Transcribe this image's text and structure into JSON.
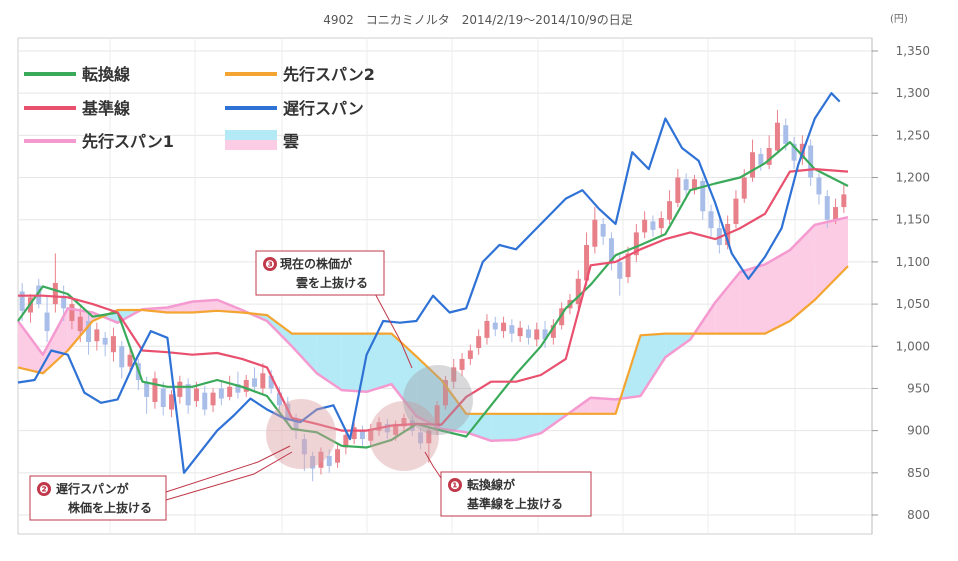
{
  "chart_data": {
    "type": "line",
    "title": "4902　コニカミノルタ　2014/2/19〜2014/10/9の日足",
    "unit": "(円)",
    "ylim": [
      790,
      1365
    ],
    "y_ticks": [
      "800",
      "850",
      "900",
      "950",
      "1,000",
      "1,050",
      "1,100",
      "1,150",
      "1,200",
      "1,250",
      "1,300",
      "1,350"
    ],
    "y_tick_values": [
      800,
      850,
      900,
      950,
      1000,
      1050,
      1100,
      1150,
      1200,
      1250,
      1300,
      1350
    ],
    "grid": true,
    "legend_position": "top-left",
    "legend": {
      "tenkan": "転換線",
      "kijun": "基準線",
      "senkou1": "先行スパン1",
      "senkou2": "先行スパン2",
      "chikou": "遅行スパン",
      "kumo": "雲"
    },
    "colors": {
      "tenkan": "#3aaa5a",
      "kijun": "#e8506e",
      "senkou1": "#f49ad0",
      "senkou2": "#f4a430",
      "chikou": "#2f72d6",
      "kumo_bull": "#b3eaf5",
      "kumo_bear": "#fccbe4",
      "candle_up": "#e8808a",
      "candle_down": "#a9bde9",
      "callout_border": "#c0384a",
      "highlight": "#dca0a4"
    },
    "x_index_range": [
      0,
      100
    ],
    "series": [
      {
        "key": "senkou1",
        "x": [
          0,
          3,
          6,
          9,
          12,
          15,
          18,
          21,
          24,
          27,
          30,
          33,
          36,
          39,
          42,
          45,
          48,
          51,
          54,
          57,
          60,
          63,
          66,
          69,
          72,
          75,
          78,
          81,
          84,
          87,
          90,
          93,
          96,
          100
        ],
        "values": [
          1030,
          990,
          1045,
          1040,
          1028,
          1044,
          1046,
          1053,
          1055,
          1043,
          1030,
          1000,
          968,
          948,
          946,
          955,
          917,
          902,
          898,
          888,
          889,
          897,
          918,
          939,
          937,
          941,
          987,
          1008,
          1052,
          1088,
          1097,
          1114,
          1144,
          1153
        ]
      },
      {
        "key": "senkou2",
        "x": [
          0,
          3,
          6,
          9,
          12,
          15,
          18,
          21,
          24,
          27,
          30,
          33,
          36,
          39,
          42,
          45,
          48,
          51,
          54,
          57,
          60,
          63,
          66,
          69,
          72,
          75,
          78,
          81,
          84,
          87,
          90,
          93,
          96,
          100
        ],
        "values": [
          975,
          968,
          995,
          1030,
          1043,
          1043,
          1040,
          1040,
          1042,
          1040,
          1037,
          1015,
          1015,
          1015,
          1015,
          1015,
          988,
          960,
          920,
          920,
          920,
          920,
          920,
          920,
          920,
          1013,
          1015,
          1015,
          1015,
          1015,
          1015,
          1030,
          1055,
          1095
        ]
      },
      {
        "key": "tenkan",
        "x": [
          0,
          3,
          6,
          9,
          12,
          15,
          18,
          21,
          24,
          27,
          30,
          33,
          36,
          39,
          42,
          45,
          48,
          51,
          54,
          57,
          60,
          63,
          66,
          69,
          72,
          75,
          78,
          81,
          84,
          87,
          90,
          93,
          96,
          100
        ],
        "values": [
          1030,
          1071,
          1062,
          1035,
          1040,
          958,
          952,
          952,
          960,
          952,
          941,
          902,
          898,
          882,
          880,
          889,
          908,
          900,
          893,
          930,
          967,
          1000,
          1045,
          1073,
          1108,
          1120,
          1133,
          1185,
          1193,
          1200,
          1217,
          1242,
          1210,
          1190
        ]
      },
      {
        "key": "kijun",
        "x": [
          0,
          3,
          6,
          9,
          12,
          15,
          18,
          21,
          24,
          27,
          30,
          33,
          36,
          39,
          42,
          45,
          48,
          51,
          54,
          57,
          60,
          63,
          66,
          69,
          72,
          75,
          78,
          81,
          84,
          87,
          90,
          93,
          96,
          100
        ],
        "values": [
          1060,
          1060,
          1058,
          1050,
          1040,
          995,
          993,
          990,
          992,
          985,
          975,
          915,
          908,
          900,
          900,
          906,
          908,
          907,
          940,
          958,
          958,
          966,
          985,
          1096,
          1100,
          1115,
          1127,
          1135,
          1127,
          1140,
          1157,
          1207,
          1210,
          1207
        ]
      },
      {
        "key": "chikou",
        "x": [
          0,
          2,
          4,
          6,
          8,
          10,
          12,
          14,
          16,
          18,
          20,
          22,
          24,
          26,
          28,
          30,
          32,
          34,
          36,
          38,
          40,
          42,
          44,
          46,
          48,
          50,
          52,
          54,
          56,
          58,
          60,
          62,
          64,
          66,
          68,
          70,
          72,
          74,
          76,
          78,
          80,
          82,
          84,
          86,
          88,
          90,
          92,
          94,
          96,
          98,
          99
        ],
        "values": [
          957,
          960,
          995,
          990,
          945,
          933,
          937,
          980,
          1018,
          1010,
          850,
          875,
          900,
          918,
          938,
          925,
          915,
          910,
          925,
          930,
          890,
          990,
          1030,
          1028,
          1030,
          1060,
          1040,
          1045,
          1100,
          1120,
          1115,
          1135,
          1155,
          1175,
          1185,
          1163,
          1145,
          1230,
          1210,
          1270,
          1235,
          1220,
          1170,
          1110,
          1080,
          1106,
          1140,
          1215,
          1270,
          1300,
          1290
        ]
      }
    ],
    "candles": [
      {
        "x": 0.5,
        "o": 1065,
        "c": 1042,
        "h": 1075,
        "l": 1030
      },
      {
        "x": 1.5,
        "o": 1040,
        "c": 1058,
        "h": 1062,
        "l": 1028
      },
      {
        "x": 2.5,
        "o": 1072,
        "c": 1050,
        "h": 1080,
        "l": 1045
      },
      {
        "x": 3.5,
        "o": 1040,
        "c": 1018,
        "h": 1060,
        "l": 1005
      },
      {
        "x": 4.5,
        "o": 1050,
        "c": 1075,
        "h": 1110,
        "l": 1040
      },
      {
        "x": 5.5,
        "o": 1060,
        "c": 1045,
        "h": 1072,
        "l": 1030
      },
      {
        "x": 6.5,
        "o": 1030,
        "c": 1050,
        "h": 1058,
        "l": 1020
      },
      {
        "x": 7.5,
        "o": 1018,
        "c": 1035,
        "h": 1046,
        "l": 1005
      },
      {
        "x": 8.5,
        "o": 1030,
        "c": 1005,
        "h": 1040,
        "l": 990
      },
      {
        "x": 9.5,
        "o": 1006,
        "c": 1020,
        "h": 1028,
        "l": 995
      },
      {
        "x": 10.5,
        "o": 1010,
        "c": 1002,
        "h": 1017,
        "l": 988
      },
      {
        "x": 11.5,
        "o": 993,
        "c": 1012,
        "h": 1022,
        "l": 982
      },
      {
        "x": 12.5,
        "o": 1000,
        "c": 975,
        "h": 1006,
        "l": 962
      },
      {
        "x": 13.5,
        "o": 976,
        "c": 990,
        "h": 998,
        "l": 968
      },
      {
        "x": 14.5,
        "o": 980,
        "c": 960,
        "h": 985,
        "l": 948
      },
      {
        "x": 15.5,
        "o": 958,
        "c": 940,
        "h": 964,
        "l": 920
      },
      {
        "x": 16.5,
        "o": 934,
        "c": 962,
        "h": 970,
        "l": 926
      },
      {
        "x": 17.5,
        "o": 950,
        "c": 928,
        "h": 958,
        "l": 918
      },
      {
        "x": 18.5,
        "o": 925,
        "c": 943,
        "h": 948,
        "l": 916
      },
      {
        "x": 19.5,
        "o": 940,
        "c": 958,
        "h": 965,
        "l": 932
      },
      {
        "x": 20.5,
        "o": 955,
        "c": 930,
        "h": 962,
        "l": 920
      },
      {
        "x": 21.5,
        "o": 935,
        "c": 950,
        "h": 958,
        "l": 928
      },
      {
        "x": 22.5,
        "o": 945,
        "c": 925,
        "h": 953,
        "l": 918
      },
      {
        "x": 23.5,
        "o": 930,
        "c": 945,
        "h": 950,
        "l": 922
      },
      {
        "x": 24.5,
        "o": 950,
        "c": 938,
        "h": 958,
        "l": 930
      },
      {
        "x": 25.5,
        "o": 940,
        "c": 952,
        "h": 965,
        "l": 936
      },
      {
        "x": 26.5,
        "o": 955,
        "c": 945,
        "h": 970,
        "l": 938
      },
      {
        "x": 27.5,
        "o": 946,
        "c": 960,
        "h": 966,
        "l": 940
      },
      {
        "x": 28.5,
        "o": 962,
        "c": 952,
        "h": 975,
        "l": 945
      },
      {
        "x": 29.5,
        "o": 950,
        "c": 968,
        "h": 980,
        "l": 944
      },
      {
        "x": 30.5,
        "o": 965,
        "c": 950,
        "h": 972,
        "l": 944
      },
      {
        "x": 31.5,
        "o": 945,
        "c": 930,
        "h": 952,
        "l": 922
      },
      {
        "x": 32.5,
        "o": 932,
        "c": 915,
        "h": 940,
        "l": 908
      },
      {
        "x": 33.5,
        "o": 915,
        "c": 900,
        "h": 920,
        "l": 890
      },
      {
        "x": 34.5,
        "o": 890,
        "c": 872,
        "h": 896,
        "l": 852
      },
      {
        "x": 35.5,
        "o": 870,
        "c": 855,
        "h": 875,
        "l": 840
      },
      {
        "x": 36.5,
        "o": 856,
        "c": 875,
        "h": 880,
        "l": 848
      },
      {
        "x": 37.5,
        "o": 870,
        "c": 858,
        "h": 878,
        "l": 850
      },
      {
        "x": 38.5,
        "o": 862,
        "c": 878,
        "h": 884,
        "l": 856
      },
      {
        "x": 39.5,
        "o": 880,
        "c": 895,
        "h": 900,
        "l": 872
      },
      {
        "x": 40.5,
        "o": 890,
        "c": 904,
        "h": 910,
        "l": 884
      },
      {
        "x": 41.5,
        "o": 900,
        "c": 890,
        "h": 906,
        "l": 882
      },
      {
        "x": 42.5,
        "o": 888,
        "c": 902,
        "h": 908,
        "l": 880
      },
      {
        "x": 43.5,
        "o": 900,
        "c": 910,
        "h": 916,
        "l": 894
      },
      {
        "x": 44.5,
        "o": 908,
        "c": 898,
        "h": 914,
        "l": 890
      },
      {
        "x": 45.5,
        "o": 895,
        "c": 908,
        "h": 912,
        "l": 888
      },
      {
        "x": 46.5,
        "o": 905,
        "c": 915,
        "h": 920,
        "l": 898
      },
      {
        "x": 47.5,
        "o": 912,
        "c": 900,
        "h": 918,
        "l": 894
      },
      {
        "x": 48.5,
        "o": 898,
        "c": 885,
        "h": 903,
        "l": 878
      },
      {
        "x": 49.5,
        "o": 885,
        "c": 900,
        "h": 905,
        "l": 862
      },
      {
        "x": 50.5,
        "o": 900,
        "c": 930,
        "h": 935,
        "l": 895
      },
      {
        "x": 51.5,
        "o": 930,
        "c": 960,
        "h": 965,
        "l": 925
      },
      {
        "x": 52.5,
        "o": 958,
        "c": 975,
        "h": 985,
        "l": 950
      },
      {
        "x": 53.5,
        "o": 972,
        "c": 985,
        "h": 992,
        "l": 965
      },
      {
        "x": 54.5,
        "o": 985,
        "c": 995,
        "h": 1002,
        "l": 978
      },
      {
        "x": 55.5,
        "o": 998,
        "c": 1012,
        "h": 1020,
        "l": 990
      },
      {
        "x": 56.5,
        "o": 1010,
        "c": 1030,
        "h": 1038,
        "l": 1002
      },
      {
        "x": 57.5,
        "o": 1028,
        "c": 1020,
        "h": 1035,
        "l": 1012
      },
      {
        "x": 58.5,
        "o": 1018,
        "c": 1028,
        "h": 1035,
        "l": 1010
      },
      {
        "x": 59.5,
        "o": 1025,
        "c": 1015,
        "h": 1032,
        "l": 1005
      },
      {
        "x": 60.5,
        "o": 1012,
        "c": 1022,
        "h": 1030,
        "l": 1005
      },
      {
        "x": 61.5,
        "o": 1020,
        "c": 1010,
        "h": 1025,
        "l": 1002
      },
      {
        "x": 62.5,
        "o": 1008,
        "c": 1020,
        "h": 1028,
        "l": 1000
      },
      {
        "x": 63.5,
        "o": 1020,
        "c": 1008,
        "h": 1030,
        "l": 998
      },
      {
        "x": 64.5,
        "o": 1010,
        "c": 1025,
        "h": 1032,
        "l": 1002
      },
      {
        "x": 65.5,
        "o": 1025,
        "c": 1045,
        "h": 1052,
        "l": 1020
      },
      {
        "x": 66.5,
        "o": 1045,
        "c": 1055,
        "h": 1062,
        "l": 1038
      },
      {
        "x": 67.5,
        "o": 1050,
        "c": 1080,
        "h": 1090,
        "l": 1045
      },
      {
        "x": 68.5,
        "o": 1078,
        "c": 1120,
        "h": 1135,
        "l": 1072
      },
      {
        "x": 69.5,
        "o": 1118,
        "c": 1150,
        "h": 1165,
        "l": 1110
      },
      {
        "x": 70.5,
        "o": 1145,
        "c": 1130,
        "h": 1152,
        "l": 1120
      },
      {
        "x": 71.5,
        "o": 1128,
        "c": 1100,
        "h": 1135,
        "l": 1090
      },
      {
        "x": 72.5,
        "o": 1100,
        "c": 1080,
        "h": 1108,
        "l": 1060
      },
      {
        "x": 73.5,
        "o": 1082,
        "c": 1110,
        "h": 1118,
        "l": 1075
      },
      {
        "x": 74.5,
        "o": 1108,
        "c": 1135,
        "h": 1145,
        "l": 1100
      },
      {
        "x": 75.5,
        "o": 1135,
        "c": 1150,
        "h": 1160,
        "l": 1128
      },
      {
        "x": 76.5,
        "o": 1148,
        "c": 1138,
        "h": 1155,
        "l": 1130
      },
      {
        "x": 77.5,
        "o": 1140,
        "c": 1152,
        "h": 1160,
        "l": 1132
      },
      {
        "x": 78.5,
        "o": 1150,
        "c": 1172,
        "h": 1185,
        "l": 1145
      },
      {
        "x": 79.5,
        "o": 1170,
        "c": 1200,
        "h": 1210,
        "l": 1165
      },
      {
        "x": 80.5,
        "o": 1198,
        "c": 1185,
        "h": 1205,
        "l": 1178
      },
      {
        "x": 81.5,
        "o": 1185,
        "c": 1198,
        "h": 1203,
        "l": 1180
      },
      {
        "x": 82.5,
        "o": 1196,
        "c": 1160,
        "h": 1200,
        "l": 1150
      },
      {
        "x": 83.5,
        "o": 1160,
        "c": 1140,
        "h": 1168,
        "l": 1130
      },
      {
        "x": 84.5,
        "o": 1140,
        "c": 1120,
        "h": 1150,
        "l": 1110
      },
      {
        "x": 85.5,
        "o": 1120,
        "c": 1145,
        "h": 1155,
        "l": 1115
      },
      {
        "x": 86.5,
        "o": 1145,
        "c": 1175,
        "h": 1185,
        "l": 1140
      },
      {
        "x": 87.5,
        "o": 1175,
        "c": 1200,
        "h": 1210,
        "l": 1170
      },
      {
        "x": 88.5,
        "o": 1200,
        "c": 1230,
        "h": 1245,
        "l": 1195
      },
      {
        "x": 89.5,
        "o": 1228,
        "c": 1215,
        "h": 1235,
        "l": 1208
      },
      {
        "x": 90.5,
        "o": 1215,
        "c": 1235,
        "h": 1250,
        "l": 1210
      },
      {
        "x": 91.5,
        "o": 1232,
        "c": 1265,
        "h": 1280,
        "l": 1228
      },
      {
        "x": 92.5,
        "o": 1262,
        "c": 1240,
        "h": 1270,
        "l": 1232
      },
      {
        "x": 93.5,
        "o": 1240,
        "c": 1220,
        "h": 1248,
        "l": 1210
      },
      {
        "x": 94.5,
        "o": 1222,
        "c": 1240,
        "h": 1250,
        "l": 1215
      },
      {
        "x": 95.5,
        "o": 1238,
        "c": 1200,
        "h": 1245,
        "l": 1190
      },
      {
        "x": 96.5,
        "o": 1200,
        "c": 1180,
        "h": 1205,
        "l": 1168
      },
      {
        "x": 97.5,
        "o": 1178,
        "c": 1150,
        "h": 1185,
        "l": 1140
      },
      {
        "x": 98.5,
        "o": 1150,
        "c": 1165,
        "h": 1175,
        "l": 1145
      },
      {
        "x": 99.5,
        "o": 1165,
        "c": 1180,
        "h": 1192,
        "l": 1158
      }
    ],
    "annotations": [
      {
        "num": "❶",
        "lines": [
          "転換線が",
          "基準線を上抜ける"
        ]
      },
      {
        "num": "❷",
        "lines": [
          "遅行スパンが",
          "株価を上抜ける"
        ]
      },
      {
        "num": "❸",
        "lines": [
          "現在の株価が",
          "雲を上抜ける"
        ]
      }
    ]
  }
}
